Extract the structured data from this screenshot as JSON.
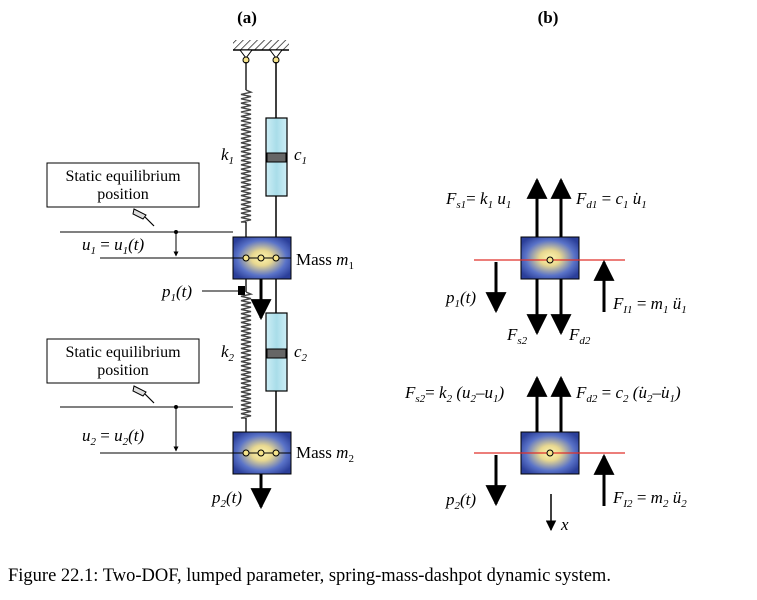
{
  "panels": {
    "a": "(a)",
    "b": "(b)"
  },
  "left": {
    "static_label_line1": "Static equilibrium",
    "static_label_line2": "position",
    "k1": "k",
    "k1_sub": "1",
    "c1": "c",
    "c1_sub": "1",
    "k2": "k",
    "k2_sub": "2",
    "c2": "c",
    "c2_sub": "2",
    "mass1_word": "Mass ",
    "mass1_sym": "m",
    "mass1_sub": "1",
    "mass2_word": "Mass ",
    "mass2_sym": "m",
    "mass2_sub": "2",
    "u1_lhs": "u",
    "u1_sub": "1",
    "u1_eq": " = ",
    "u1_rhs": "u",
    "u1_rhs_sub": "1",
    "u1_t": "(t)",
    "u2_lhs": "u",
    "u2_sub": "2",
    "u2_eq": " = ",
    "u2_rhs": "u",
    "u2_rhs_sub": "2",
    "u2_t": "(t)",
    "p1": "p",
    "p1_sub": "1",
    "p1_t": "(t)",
    "p2": "p",
    "p2_sub": "2",
    "p2_t": "(t)"
  },
  "right": {
    "fs1_F": "F",
    "fs1_sub": "s1",
    "fs1_eq": "= ",
    "fs1_k": "k",
    "fs1_ksub": "1",
    "fs1_u": " u",
    "fs1_usub": "1",
    "fd1_F": "F",
    "fd1_sub": "d1",
    "fd1_eq": " = ",
    "fd1_c": "c",
    "fd1_csub": "1",
    "fd1_u": " ̇u",
    "fd1_usub": "1",
    "p1": "p",
    "p1_sub": "1",
    "p1_t": "(t)",
    "fs2lab_F": "F",
    "fs2lab_sub": "s2",
    "fd2lab_F": "F",
    "fd2lab_sub": "d2",
    "fi1_F": "F",
    "fi1_sub": "I1",
    "fi1_eq": " = ",
    "fi1_m": "m",
    "fi1_msub": "1",
    "fi1_u": " ü",
    "fi1_usub": "1",
    "fs2_F": "F",
    "fs2_sub": "s2",
    "fs2_eq": "= ",
    "fs2_k": "k",
    "fs2_ksub": "2",
    "fs2_u": " (u",
    "fs2_u2sub": "2",
    "fs2_minus": "–u",
    "fs2_u1sub": "1",
    "fs2_close": ")",
    "fd2_F": "F",
    "fd2_sub": "d2",
    "fd2_eq": " = ",
    "fd2_c": "c",
    "fd2_csub": "2",
    "fd2_u": " (̇u",
    "fd2_u2sub": "2",
    "fd2_minus": "–̇u",
    "fd2_u1sub": "1",
    "fd2_close": ")",
    "p2": "p",
    "p2_sub": "2",
    "p2_t": "(t)",
    "fi2_F": "F",
    "fi2_sub": "I2",
    "fi2_eq": " = ",
    "fi2_m": "m",
    "fi2_msub": "2",
    "fi2_u": " ü",
    "fi2_usub": "2",
    "x": "x"
  },
  "caption": "Figure 22.1: Two-DOF, lumped parameter, spring-mass-dashpot dynamic system."
}
